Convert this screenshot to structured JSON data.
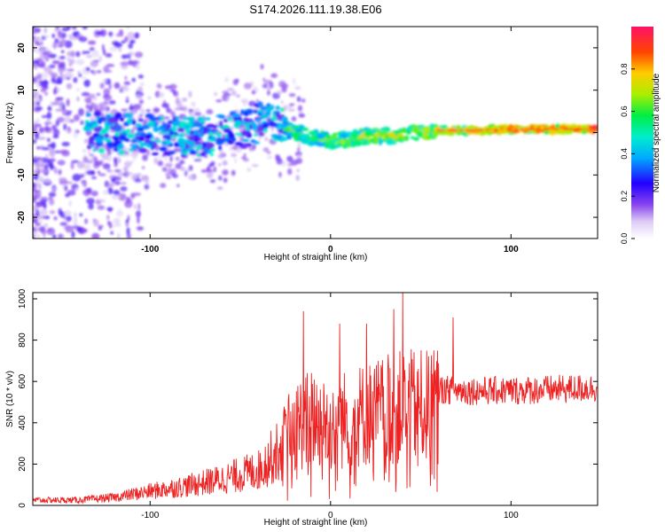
{
  "title": "S174.2026.111.19.38.E06",
  "chart_data": [
    {
      "type": "heatmap",
      "xlabel": "Height of straight line (km)",
      "ylabel": "Frequency (Hz)",
      "xlim": [
        -165,
        148
      ],
      "ylim": [
        -25,
        25
      ],
      "xticks": [
        -100,
        0,
        100
      ],
      "yticks": [
        -20,
        -10,
        0,
        10,
        20
      ],
      "colorbar": {
        "label": "Normalized spectral amplitude",
        "range": [
          0.0,
          1.0
        ],
        "ticks": [
          0.0,
          0.2,
          0.4,
          0.6,
          0.8
        ]
      },
      "ridge": [
        {
          "x": -130,
          "y": 0.0
        },
        {
          "x": -100,
          "y": -0.5
        },
        {
          "x": -70,
          "y": -1.0
        },
        {
          "x": -50,
          "y": 0.5
        },
        {
          "x": -35,
          "y": 3.0
        },
        {
          "x": -25,
          "y": 1.0
        },
        {
          "x": -20,
          "y": 0.0
        },
        {
          "x": 0,
          "y": -2.0
        },
        {
          "x": 20,
          "y": -1.0
        },
        {
          "x": 40,
          "y": -0.5
        },
        {
          "x": 60,
          "y": 0.5
        },
        {
          "x": 80,
          "y": 0.5
        },
        {
          "x": 100,
          "y": 0.8
        },
        {
          "x": 148,
          "y": 0.8
        }
      ]
    },
    {
      "type": "line",
      "xlabel": "Height of straight line (km)",
      "ylabel": "SNR (10 * v/v)",
      "xlim": [
        -165,
        148
      ],
      "ylim": [
        0,
        1030
      ],
      "xticks": [
        -100,
        0,
        100
      ],
      "yticks": [
        0,
        200,
        400,
        600,
        800,
        1000
      ],
      "series": [
        {
          "name": "SNR",
          "color": "#ee2222",
          "envelope": [
            {
              "x": -165,
              "y": 30
            },
            {
              "x": -140,
              "y": 30
            },
            {
              "x": -120,
              "y": 45
            },
            {
              "x": -100,
              "y": 80
            },
            {
              "x": -80,
              "y": 110
            },
            {
              "x": -60,
              "y": 150
            },
            {
              "x": -40,
              "y": 200
            },
            {
              "x": -30,
              "y": 300
            },
            {
              "x": -20,
              "y": 450
            },
            {
              "x": -10,
              "y": 500
            },
            {
              "x": 0,
              "y": 450
            },
            {
              "x": 10,
              "y": 500
            },
            {
              "x": 20,
              "y": 520
            },
            {
              "x": 30,
              "y": 540
            },
            {
              "x": 40,
              "y": 560
            },
            {
              "x": 60,
              "y": 560
            },
            {
              "x": 80,
              "y": 555
            },
            {
              "x": 100,
              "y": 555
            },
            {
              "x": 120,
              "y": 560
            },
            {
              "x": 148,
              "y": 570
            }
          ],
          "peaks": [
            {
              "x": -15,
              "y": 940
            },
            {
              "x": 40,
              "y": 1030
            },
            {
              "x": 35,
              "y": 950
            },
            {
              "x": 68,
              "y": 910
            },
            {
              "x": 5,
              "y": 880
            },
            {
              "x": 20,
              "y": 880
            }
          ]
        }
      ]
    }
  ]
}
